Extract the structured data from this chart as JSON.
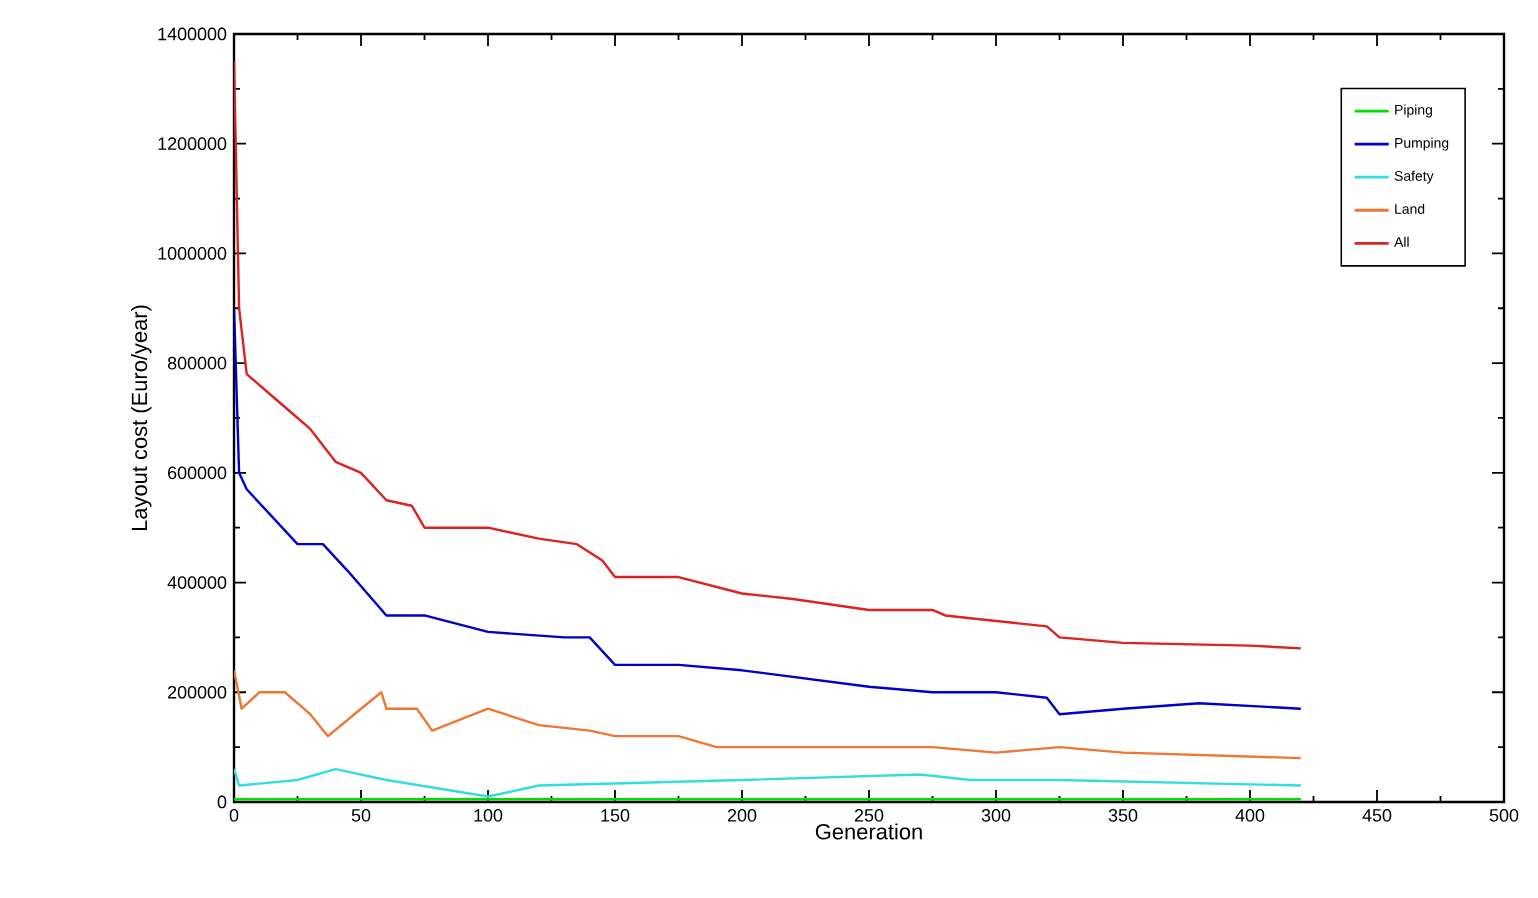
{
  "chart_data": {
    "type": "line",
    "xlabel": "Generation",
    "ylabel": "Layout cost (Euro/year)",
    "xlim": [
      0,
      500
    ],
    "ylim": [
      0,
      1400000
    ],
    "xticks": [
      0,
      50,
      100,
      150,
      200,
      250,
      300,
      350,
      400,
      450,
      500
    ],
    "yticks": [
      0,
      200000,
      400000,
      600000,
      800000,
      1000000,
      1200000,
      1400000
    ],
    "legend": "top right",
    "grid": false,
    "marker": "none",
    "line_style": "solid",
    "series": [
      {
        "name": "Piping",
        "color": "#00dd00",
        "x": [
          0,
          420
        ],
        "values": [
          5000,
          5000
        ]
      },
      {
        "name": "Pumping",
        "color": "#0000cc",
        "x": [
          0,
          2,
          5,
          25,
          35,
          45,
          60,
          75,
          100,
          130,
          140,
          150,
          175,
          200,
          250,
          275,
          300,
          320,
          325,
          350,
          380,
          420
        ],
        "values": [
          900000,
          600000,
          570000,
          470000,
          470000,
          420000,
          340000,
          340000,
          310000,
          300000,
          300000,
          250000,
          250000,
          240000,
          210000,
          200000,
          200000,
          190000,
          160000,
          170000,
          180000,
          170000
        ]
      },
      {
        "name": "Safety",
        "color": "#33dddd",
        "x": [
          0,
          2,
          25,
          40,
          60,
          100,
          120,
          200,
          270,
          290,
          325,
          420
        ],
        "values": [
          60000,
          30000,
          40000,
          60000,
          40000,
          10000,
          30000,
          40000,
          50000,
          40000,
          40000,
          30000
        ]
      },
      {
        "name": "Land",
        "color": "#ee7733",
        "x": [
          0,
          3,
          10,
          20,
          30,
          37,
          50,
          58,
          60,
          72,
          78,
          100,
          120,
          140,
          150,
          175,
          190,
          250,
          275,
          300,
          325,
          350,
          420
        ],
        "values": [
          240000,
          170000,
          200000,
          200000,
          160000,
          120000,
          170000,
          200000,
          170000,
          170000,
          130000,
          170000,
          140000,
          130000,
          120000,
          120000,
          100000,
          100000,
          100000,
          90000,
          100000,
          90000,
          80000
        ]
      },
      {
        "name": "All",
        "color": "#dd2222",
        "x": [
          0,
          2,
          5,
          20,
          30,
          40,
          50,
          60,
          70,
          75,
          100,
          120,
          135,
          145,
          150,
          175,
          200,
          220,
          250,
          275,
          280,
          300,
          320,
          325,
          350,
          400,
          420
        ],
        "values": [
          1350000,
          900000,
          780000,
          720000,
          680000,
          620000,
          600000,
          550000,
          540000,
          500000,
          500000,
          480000,
          470000,
          440000,
          410000,
          410000,
          380000,
          370000,
          350000,
          350000,
          340000,
          330000,
          320000,
          300000,
          290000,
          285000,
          280000
        ]
      }
    ]
  }
}
